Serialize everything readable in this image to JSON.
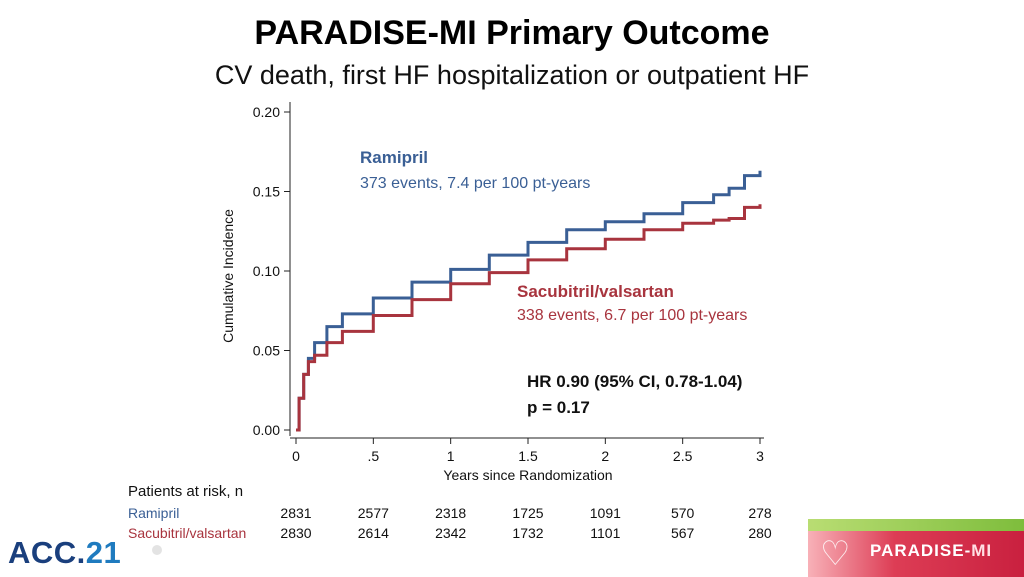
{
  "slide": {
    "title": "PARADISE-MI Primary Outcome",
    "subtitle": "CV death, first HF hospitalization or outpatient HF"
  },
  "chart_data": {
    "type": "line",
    "step": true,
    "title": "",
    "xlabel": "Years since Randomization",
    "ylabel": "Cumulative Incidence",
    "xlim": [
      0,
      3
    ],
    "ylim": [
      0,
      0.2
    ],
    "xticks": [
      0,
      0.5,
      1,
      1.5,
      2,
      2.5,
      3
    ],
    "xtick_labels": [
      "0",
      ".5",
      "1",
      "1.5",
      "2",
      "2.5",
      "3"
    ],
    "yticks": [
      0,
      0.05,
      0.1,
      0.15,
      0.2
    ],
    "ytick_labels": [
      "0.00",
      "0.05",
      "0.10",
      "0.15",
      "0.20"
    ],
    "grid": false,
    "series": [
      {
        "name": "Ramipril",
        "color": "#3a5f95",
        "annotation_title": "Ramipril",
        "annotation_text": "373 events, 7.4 per 100 pt-years",
        "x": [
          0,
          0.02,
          0.05,
          0.08,
          0.12,
          0.2,
          0.3,
          0.5,
          0.75,
          1.0,
          1.25,
          1.5,
          1.75,
          2.0,
          2.25,
          2.5,
          2.7,
          2.8,
          2.9,
          3.0
        ],
        "y": [
          0,
          0.02,
          0.035,
          0.045,
          0.055,
          0.065,
          0.073,
          0.083,
          0.093,
          0.101,
          0.11,
          0.118,
          0.126,
          0.131,
          0.136,
          0.143,
          0.148,
          0.152,
          0.16,
          0.163
        ]
      },
      {
        "name": "Sacubitril/valsartan",
        "color": "#a8343e",
        "annotation_title": "Sacubitril/valsartan",
        "annotation_text": "338 events, 6.7 per 100 pt-years",
        "x": [
          0,
          0.02,
          0.05,
          0.08,
          0.12,
          0.2,
          0.3,
          0.5,
          0.75,
          1.0,
          1.25,
          1.5,
          1.75,
          2.0,
          2.25,
          2.5,
          2.7,
          2.8,
          2.9,
          3.0
        ],
        "y": [
          0,
          0.02,
          0.035,
          0.043,
          0.047,
          0.055,
          0.062,
          0.072,
          0.082,
          0.092,
          0.099,
          0.107,
          0.114,
          0.12,
          0.126,
          0.13,
          0.132,
          0.133,
          0.14,
          0.142
        ]
      }
    ],
    "stats": {
      "hr": "HR 0.90 (95% CI, 0.78-1.04)",
      "p": "p = 0.17"
    },
    "risk_table": {
      "title": "Patients at risk, n",
      "rows": [
        {
          "label": "Ramipril",
          "color": "#3a5f95",
          "values": [
            "2831",
            "2577",
            "2318",
            "1725",
            "1091",
            "570",
            "278"
          ]
        },
        {
          "label": "Sacubitril/valsartan",
          "color": "#a8343e",
          "values": [
            "2830",
            "2614",
            "2342",
            "1732",
            "1101",
            "567",
            "280"
          ]
        }
      ]
    }
  },
  "logos": {
    "acc_prefix": "ACC.",
    "acc_number": "21",
    "paradise_prefix": "PARADISE-",
    "paradise_suffix": "MI"
  }
}
